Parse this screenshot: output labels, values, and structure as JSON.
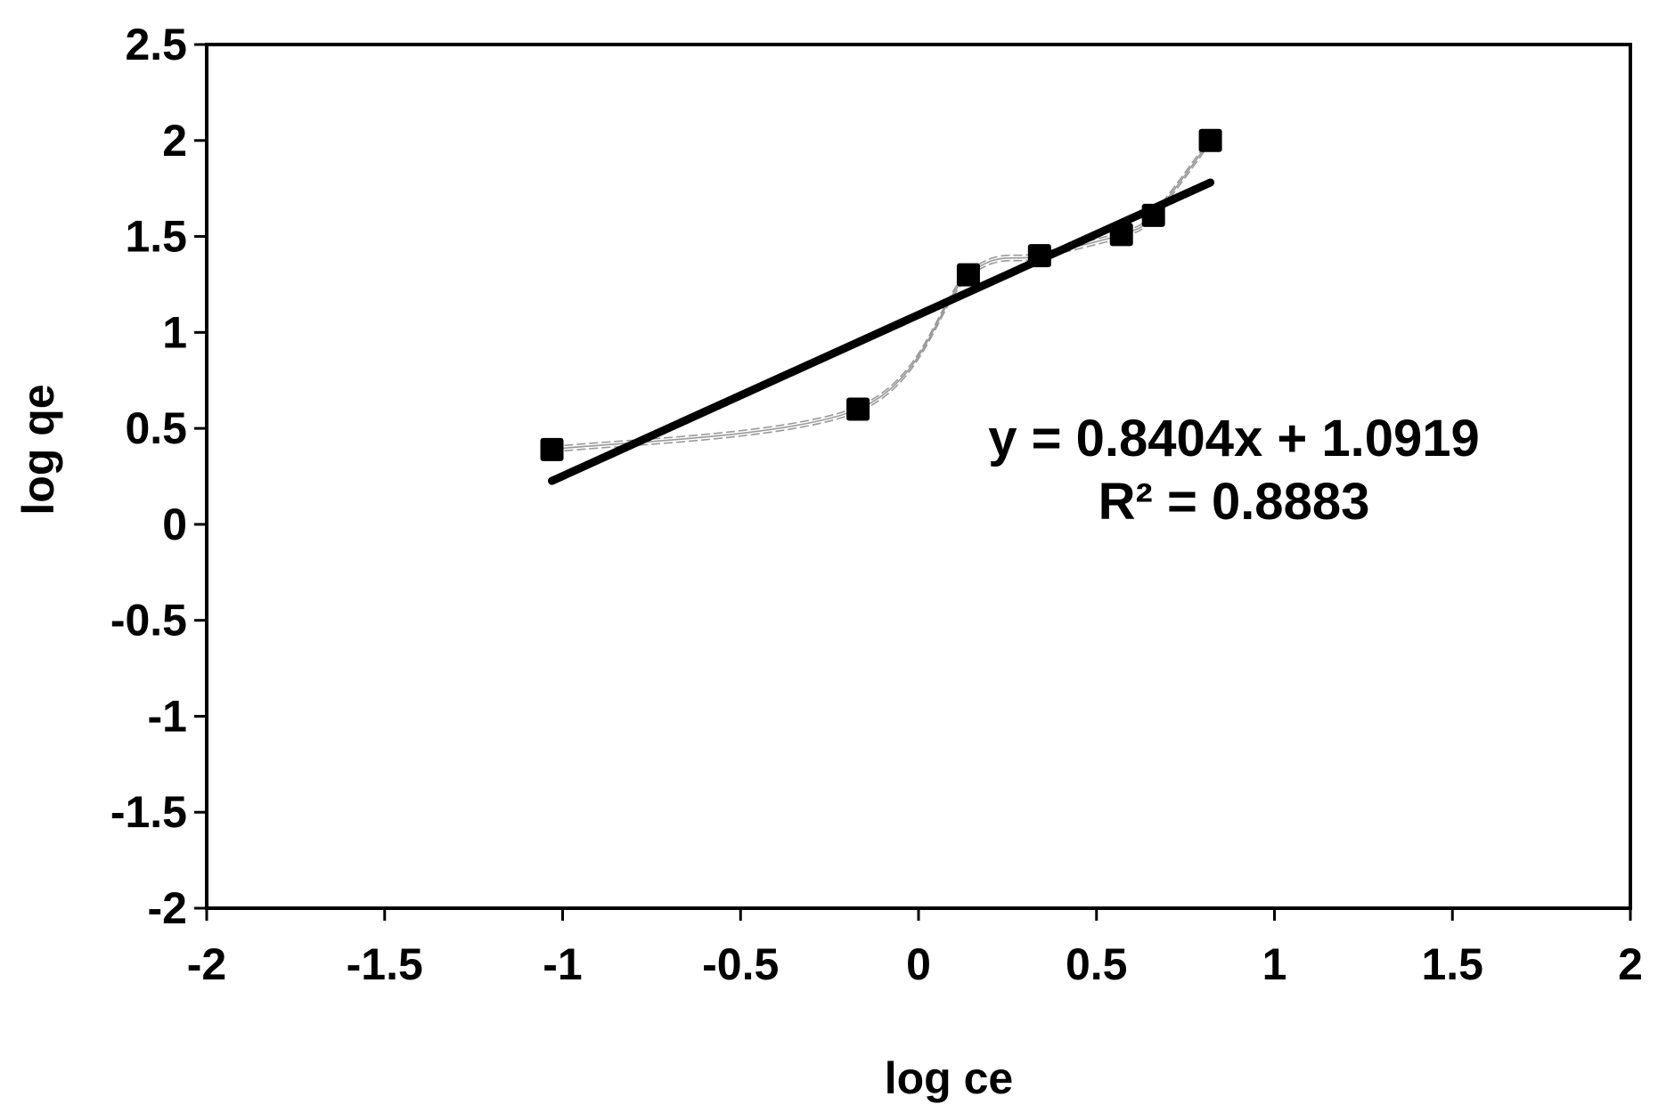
{
  "chart_data": {
    "type": "scatter",
    "title": "",
    "xlabel": "log ce",
    "ylabel": "log qe",
    "xlim": [
      -2,
      2
    ],
    "ylim": [
      -2,
      2.5
    ],
    "xticks": [
      "-2",
      "-1.5",
      "-1",
      "-0.5",
      "0",
      "0.5",
      "1",
      "1.5",
      "2"
    ],
    "yticks": [
      "2.5",
      "2",
      "1.5",
      "1",
      "0.5",
      "0",
      "-0.5",
      "-1",
      "-1.5",
      "-2"
    ],
    "grid": false,
    "legend": "none",
    "marker": "square",
    "series": [
      {
        "points": [
          {
            "x": -1.03,
            "y": 0.39
          },
          {
            "x": -0.17,
            "y": 0.6
          },
          {
            "x": 0.14,
            "y": 1.3
          },
          {
            "x": 0.34,
            "y": 1.4
          },
          {
            "x": 0.57,
            "y": 1.51
          },
          {
            "x": 0.66,
            "y": 1.61
          },
          {
            "x": 0.82,
            "y": 2.0
          }
        ]
      }
    ],
    "trendline": {
      "type": "linear",
      "slope": 0.8404,
      "intercept": 1.0919,
      "x_range": [
        -1.03,
        0.82
      ]
    },
    "annotations": [
      "y = 0.8404x + 1.0919",
      "R² = 0.8883"
    ],
    "colors": {
      "marker": "#000000",
      "trendline": "#000000",
      "smooth_line": "#9a9a9a"
    }
  }
}
